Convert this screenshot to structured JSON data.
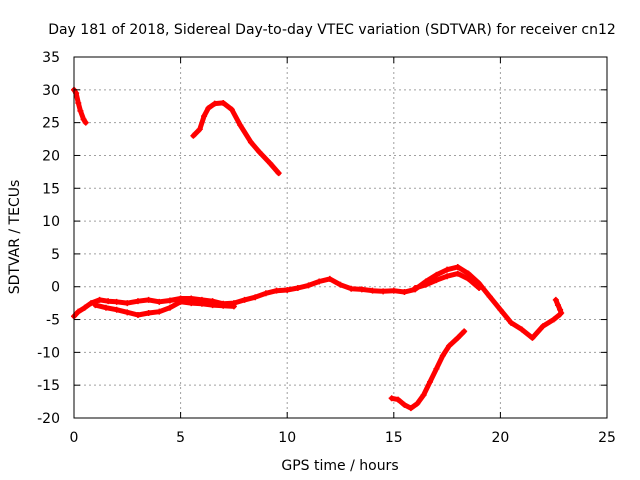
{
  "chart_data": {
    "type": "scatter",
    "title": "Day 181 of 2018, Sidereal Day-to-day VTEC variation (SDTVAR) for receiver cn12",
    "xlabel": "GPS time / hours",
    "ylabel": "SDTVAR / TECUs",
    "xlim": [
      0,
      25
    ],
    "ylim": [
      -20,
      35
    ],
    "xticks": [
      0,
      5,
      10,
      15,
      20,
      25
    ],
    "yticks": [
      -20,
      -15,
      -10,
      -5,
      0,
      5,
      10,
      15,
      20,
      25,
      30,
      35
    ],
    "grid": true,
    "colors": {
      "series": "#ff0000",
      "grid": "#a0a0a0",
      "axis": "#000000"
    },
    "series": [
      {
        "name": "segment-1",
        "x": [
          0.0,
          0.1,
          0.2,
          0.3,
          0.45,
          0.55
        ],
        "y": [
          30.0,
          29.5,
          28.0,
          26.8,
          25.5,
          25.0
        ]
      },
      {
        "name": "segment-2",
        "x": [
          5.6,
          5.9,
          6.1,
          6.3,
          6.6,
          7.0,
          7.4,
          7.8,
          8.3,
          8.7,
          9.2,
          9.6
        ],
        "y": [
          23.0,
          24.0,
          26.0,
          27.2,
          27.9,
          28.0,
          27.0,
          24.6,
          22.0,
          20.5,
          18.8,
          17.3
        ]
      },
      {
        "name": "segment-3-main",
        "x": [
          0.0,
          0.2,
          0.5,
          0.8,
          1.2,
          1.6,
          2.0,
          2.5,
          3.0,
          3.5,
          4.0,
          4.5,
          5.0,
          5.5,
          6.0,
          6.5,
          7.0,
          7.5,
          8.0,
          8.5,
          9.0,
          9.5,
          10.0,
          10.5,
          11.0,
          11.5,
          12.0,
          12.5,
          13.0,
          13.5,
          14.0,
          14.5,
          15.0,
          15.5,
          16.0,
          16.5,
          17.0,
          17.5,
          18.0,
          18.5,
          19.0,
          19.5,
          20.0,
          20.5,
          21.0,
          21.5,
          22.0,
          22.5,
          22.8
        ],
        "y": [
          -4.5,
          -3.8,
          -3.2,
          -2.5,
          -2.0,
          -2.2,
          -2.3,
          -2.5,
          -2.2,
          -2.0,
          -2.3,
          -2.1,
          -1.8,
          -1.8,
          -2.0,
          -2.2,
          -2.6,
          -2.5,
          -2.0,
          -1.6,
          -1.0,
          -0.6,
          -0.5,
          -0.2,
          0.2,
          0.8,
          1.2,
          0.3,
          -0.3,
          -0.4,
          -0.6,
          -0.7,
          -0.6,
          -0.8,
          -0.4,
          0.8,
          1.8,
          2.6,
          3.0,
          2.0,
          0.5,
          -1.5,
          -3.5,
          -5.5,
          -6.5,
          -7.8,
          -6.0,
          -5.0,
          -4.2
        ]
      },
      {
        "name": "segment-3-lower-branch",
        "x": [
          1.0,
          1.5,
          2.0,
          2.5,
          3.0,
          3.5,
          4.0,
          4.5,
          5.0,
          5.5,
          6.0,
          6.5,
          7.0,
          7.5
        ],
        "y": [
          -2.8,
          -3.2,
          -3.5,
          -3.9,
          -4.3,
          -4.0,
          -3.8,
          -3.2,
          -2.3,
          -2.5,
          -2.6,
          -2.8,
          -2.9,
          -3.0
        ]
      },
      {
        "name": "segment-3-upper-branch",
        "x": [
          16.0,
          16.5,
          17.0,
          17.5,
          18.0,
          18.5,
          19.0
        ],
        "y": [
          -0.2,
          0.3,
          1.0,
          1.6,
          2.0,
          1.2,
          -0.2
        ]
      },
      {
        "name": "segment-4",
        "x": [
          14.9,
          15.2,
          15.5,
          15.8,
          16.1,
          16.4,
          16.7,
          17.0,
          17.3,
          17.6,
          18.0,
          18.3
        ],
        "y": [
          -17.0,
          -17.2,
          -18.0,
          -18.5,
          -17.8,
          -16.5,
          -14.5,
          -12.5,
          -10.5,
          -9.0,
          -7.8,
          -6.8
        ]
      },
      {
        "name": "segment-5-tail",
        "x": [
          22.6,
          22.7,
          22.8,
          22.85
        ],
        "y": [
          -2.0,
          -2.8,
          -3.5,
          -4.0
        ]
      }
    ]
  }
}
